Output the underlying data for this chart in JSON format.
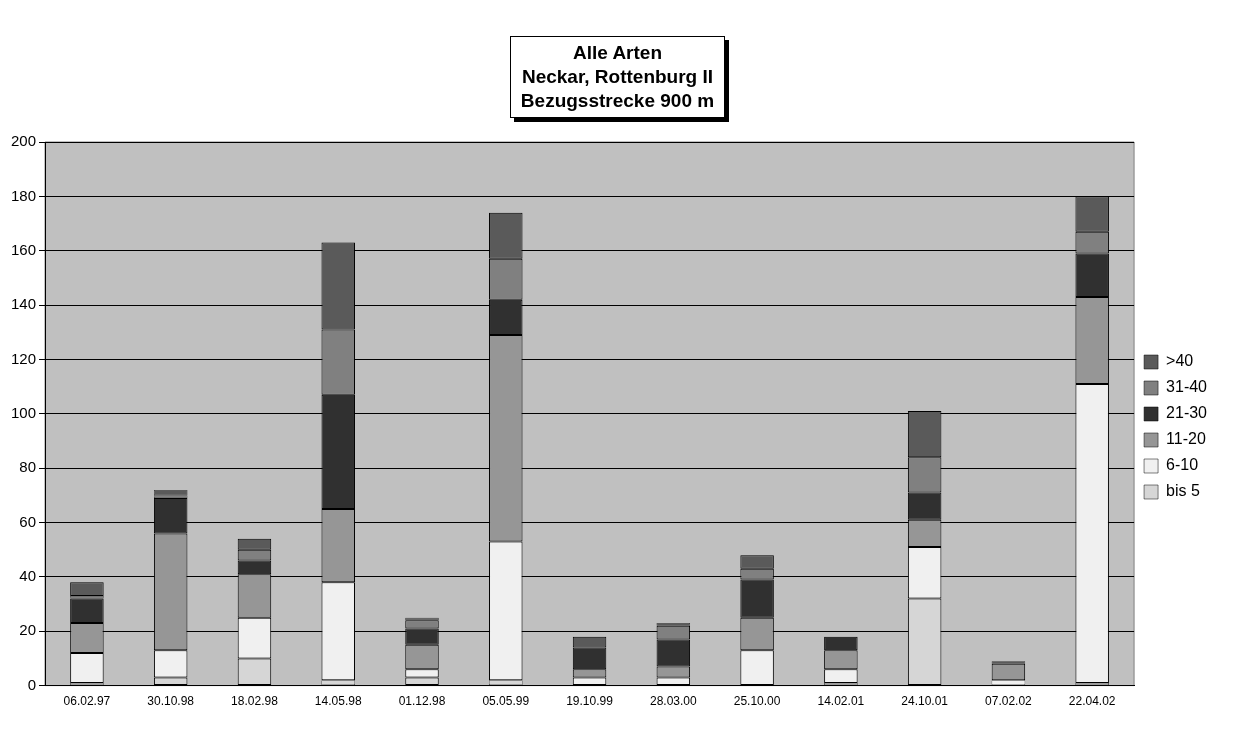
{
  "chart_data": {
    "type": "bar",
    "title": "Alle Arten",
    "subtitle": "Neckar, Rottenburg II\nBezugsstrecke 900 m",
    "categories": [
      "06.02.97",
      "30.10.98",
      "18.02.98",
      "14.05.98",
      "01.12.98",
      "05.05.99",
      "19.10.99",
      "28.03.00",
      "25.10.00",
      "14.02.01",
      "24.10.01",
      "07.02.02",
      "22.04.02"
    ],
    "stacked": true,
    "ylim": [
      0,
      200
    ],
    "yticks": [
      0,
      20,
      40,
      60,
      80,
      100,
      120,
      140,
      160,
      180,
      200
    ],
    "grid": "y",
    "legend": "right",
    "series": [
      {
        "name": "bis 5",
        "color": "#d6d6d6",
        "values": [
          1,
          3,
          10,
          2,
          3,
          2,
          0,
          0,
          0,
          1,
          32,
          0,
          1
        ]
      },
      {
        "name": "6-10",
        "color": "#f0f0f0",
        "values": [
          11,
          10,
          15,
          36,
          3,
          51,
          3,
          3,
          13,
          5,
          19,
          2,
          110
        ]
      },
      {
        "name": "11-20",
        "color": "#969696",
        "values": [
          11,
          43,
          16,
          27,
          9,
          76,
          3,
          4,
          12,
          7,
          10,
          6,
          32
        ]
      },
      {
        "name": "21-30",
        "color": "#303030",
        "values": [
          9,
          13,
          5,
          42,
          6,
          13,
          8,
          10,
          14,
          5,
          10,
          0,
          16
        ]
      },
      {
        "name": "31-40",
        "color": "#808080",
        "values": [
          1,
          1,
          4,
          24,
          3,
          15,
          0,
          5,
          4,
          0,
          13,
          0,
          8
        ]
      },
      {
        "name": ">40",
        "color": "#5a5a5a",
        "values": [
          5,
          2,
          4,
          32,
          1,
          17,
          4,
          1,
          5,
          0,
          17,
          1,
          13
        ]
      }
    ]
  }
}
